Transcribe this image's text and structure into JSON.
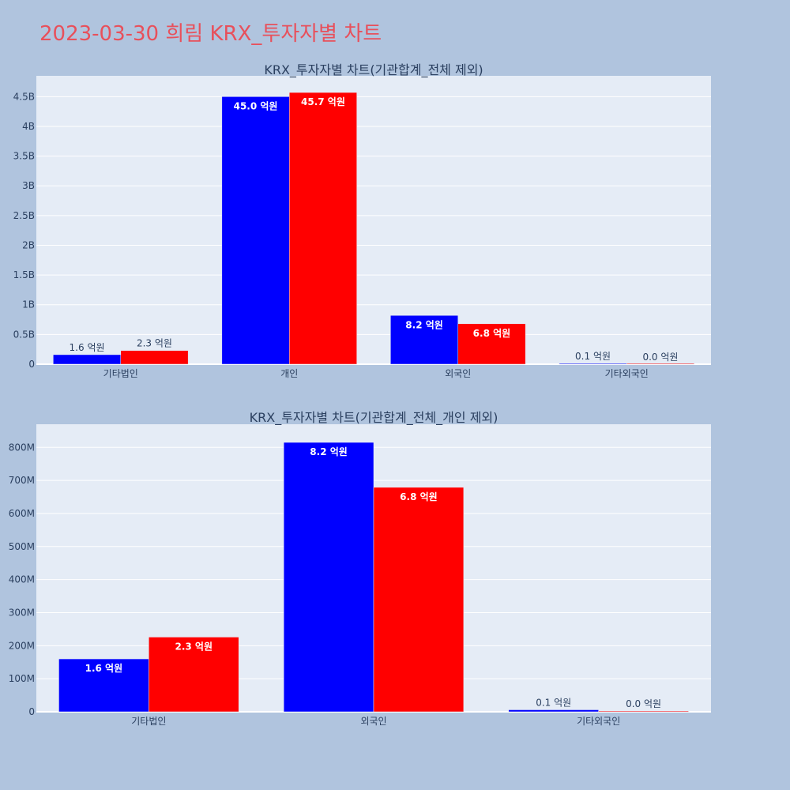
{
  "page": {
    "title": "2023-03-30 희림 KRX_투자자별 차트",
    "background": "#b0c4de",
    "title_color": "#e8505b"
  },
  "chart_data": [
    {
      "type": "bar",
      "title": "KRX_투자자별 차트(기관합계_전체 제외)",
      "categories": [
        "기타법인",
        "개인",
        "외국인",
        "기타외국인"
      ],
      "series": [
        {
          "color": "#0000ff",
          "values": [
            160000000,
            4500000000,
            820000000,
            10000000
          ],
          "labels": [
            "1.6 억원",
            "45.0 억원",
            "8.2 억원",
            "0.1 억원"
          ]
        },
        {
          "color": "#ff0000",
          "values": [
            230000000,
            4570000000,
            680000000,
            3000000
          ],
          "labels": [
            "2.3 억원",
            "45.7 억원",
            "6.8 억원",
            "0.0 억원"
          ]
        }
      ],
      "ylim": [
        0,
        4850000000
      ],
      "yticks": [
        0,
        500000000,
        1000000000,
        1500000000,
        2000000000,
        2500000000,
        3000000000,
        3500000000,
        4000000000,
        4500000000
      ],
      "yticklabels": [
        "0",
        "0.5B",
        "1B",
        "1.5B",
        "2B",
        "2.5B",
        "3B",
        "3.5B",
        "4B",
        "4.5B"
      ],
      "grid": true,
      "plot_bg": "#e5ecf6"
    },
    {
      "type": "bar",
      "title": "KRX_투자자별 차트(기관합계_전체_개인 제외)",
      "categories": [
        "기타법인",
        "외국인",
        "기타외국인"
      ],
      "series": [
        {
          "color": "#0000ff",
          "values": [
            160000000,
            815000000,
            6000000
          ],
          "labels": [
            "1.6 억원",
            "8.2 억원",
            "0.1 억원"
          ]
        },
        {
          "color": "#ff0000",
          "values": [
            226000000,
            679000000,
            2000000
          ],
          "labels": [
            "2.3 억원",
            "6.8 억원",
            "0.0 억원"
          ]
        }
      ],
      "ylim": [
        0,
        870000000
      ],
      "yticks": [
        0,
        100000000,
        200000000,
        300000000,
        400000000,
        500000000,
        600000000,
        700000000,
        800000000
      ],
      "yticklabels": [
        "0",
        "100M",
        "200M",
        "300M",
        "400M",
        "500M",
        "600M",
        "700M",
        "800M"
      ],
      "grid": true,
      "plot_bg": "#e5ecf6"
    }
  ]
}
